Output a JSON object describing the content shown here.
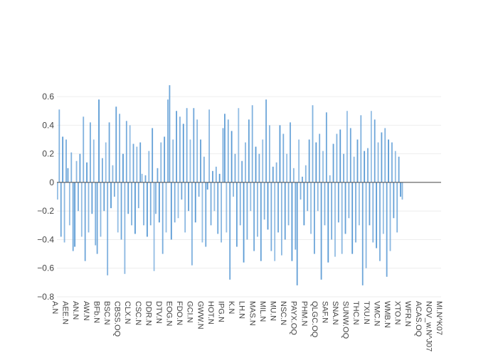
{
  "chart_data": {
    "type": "bar",
    "title": "",
    "xlabel": "",
    "ylabel": "",
    "ylim": [
      -0.8,
      0.7
    ],
    "y_ticks": [
      "0.6",
      "0.4",
      "0.2",
      "0",
      "−0.2",
      "−0.4",
      "−0.6",
      "−0.8"
    ],
    "y_tick_values": [
      0.6,
      0.4,
      0.2,
      0,
      -0.2,
      -0.4,
      -0.6,
      -0.8
    ],
    "x_tick_labels": [
      "A.N",
      "AEE.N",
      "AN.N",
      "AW.N",
      "BFb.N",
      "BSC.N",
      "CBSS.OQ",
      "CLX.N",
      "CSC.N",
      "DDR.N",
      "DTV.N",
      "EOG.N",
      "FDO.N",
      "GCI.N",
      "GWW.N",
      "HOT.N",
      "IPG.N",
      "K.N",
      "LH.N",
      "MAS.N",
      "MIL.N",
      "MU.N",
      "NSC.N",
      "PAYX.OQ",
      "PHM.N",
      "QLGC.OQ",
      "SAF.N",
      "SNA.N",
      "SUNW.OQ",
      "THC.N",
      "TXU.N",
      "VMC.N",
      "WMB.N",
      "XTO.N",
      "WFR.N",
      "ACAS.OQ",
      "NOV_w.N^J07",
      "MI.N^K07"
    ],
    "grid": true,
    "legend": "none",
    "bar_color": "#5b9bd5",
    "zero_line_color": "#444444",
    "values": [
      -0.12,
      0.51,
      -0.38,
      0.32,
      -0.42,
      0.3,
      0.1,
      -0.3,
      0.21,
      -0.48,
      -0.45,
      0.15,
      -0.2,
      0.2,
      -0.38,
      0.46,
      -0.55,
      0.14,
      -0.35,
      0.42,
      -0.22,
      0.3,
      -0.44,
      -0.5,
      0.58,
      -0.38,
      0.17,
      -0.2,
      0.28,
      -0.65,
      0.42,
      -0.18,
      0.12,
      -0.1,
      0.53,
      -0.35,
      0.48,
      -0.4,
      0.2,
      -0.64,
      0.43,
      -0.22,
      0.4,
      -0.3,
      0.27,
      -0.36,
      0.25,
      -0.18,
      0.28,
      0.06,
      -0.3,
      0.05,
      -0.38,
      0.22,
      -0.3,
      0.38,
      -0.62,
      -0.22,
      0.1,
      -0.28,
      0.28,
      -0.5,
      0.32,
      -0.35,
      0.58,
      0.68,
      -0.4,
      0.3,
      -0.28,
      0.5,
      -0.25,
      0.46,
      -0.12,
      0.41,
      -0.35,
      0.52,
      -0.2,
      0.3,
      -0.58,
      0.52,
      -0.28,
      0.44,
      -0.1,
      0.3,
      -0.42,
      0.18,
      -0.45,
      -0.05,
      0.51,
      -0.3,
      0.08,
      -0.2,
      0.11,
      -0.36,
      0.06,
      -0.42,
      0.38,
      0.48,
      -0.35,
      0.44,
      -0.68,
      0.36,
      -0.1,
      0.2,
      -0.45,
      0.52,
      -0.3,
      0.15,
      -0.56,
      0.28,
      -0.4,
      0.44,
      -0.2,
      0.54,
      -0.48,
      0.25,
      -0.38,
      0.2,
      -0.55,
      0.3,
      -0.26,
      0.58,
      -0.33,
      0.4,
      -0.48,
      0.11,
      -0.55,
      0.14,
      -0.35,
      0.4,
      -0.51,
      0.34,
      -0.4,
      0.2,
      -0.3,
      0.42,
      -0.55,
      0.1,
      -0.47,
      -0.72,
      0.3,
      -0.12,
      0.04,
      -0.3,
      0.12,
      -0.2,
      0.3,
      -0.36,
      0.54,
      -0.5,
      0.28,
      -0.2,
      0.34,
      -0.68,
      0.22,
      -0.3,
      0.49,
      -0.56,
      0.05,
      -0.4,
      0.27,
      -0.52,
      0.34,
      -0.28,
      0.37,
      -0.5,
      0.2,
      -0.36,
      0.5,
      -0.25,
      0.38,
      -0.5,
      0.18,
      -0.42,
      0.3,
      -0.3,
      0.47,
      -0.72,
      0.22,
      -0.6,
      0.24,
      -0.3,
      0.5,
      -0.42,
      0.44,
      -0.46,
      0.28,
      -0.55,
      0.35,
      -0.36,
      0.38,
      -0.66,
      0.3,
      -0.48,
      0.28,
      -0.25,
      0.22,
      -0.35,
      0.18,
      -0.1,
      -0.12
    ]
  }
}
